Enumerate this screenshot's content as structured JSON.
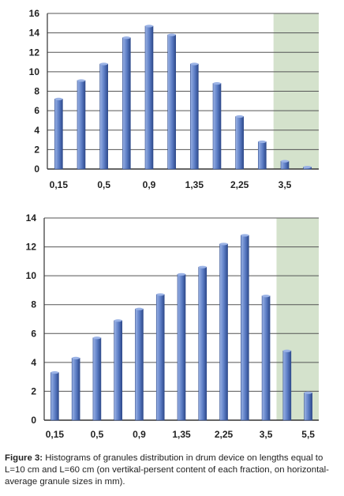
{
  "colors": {
    "bar": "#5b7cc4",
    "bar_dark": "#2e4a8c",
    "bar_light": "#9bb3e6",
    "plot_bg": "#d4e2cc",
    "grid": "#555555"
  },
  "chart_data": [
    {
      "type": "bar",
      "ylim": [
        0,
        16
      ],
      "yticks": [
        "0",
        "2",
        "4",
        "6",
        "8",
        "10",
        "12",
        "14",
        "16"
      ],
      "xtick_labels": [
        "0,15",
        "0,5",
        "0,9",
        "1,35",
        "2,25",
        "3,5"
      ],
      "xtick_bar_index": [
        0,
        2,
        4,
        6,
        8,
        10
      ],
      "values": [
        7.2,
        9.1,
        10.8,
        13.5,
        14.7,
        13.8,
        10.8,
        8.8,
        5.4,
        2.8,
        0.8,
        0.2
      ],
      "grid": true,
      "legend": "none"
    },
    {
      "type": "bar",
      "ylim": [
        0,
        14
      ],
      "yticks": [
        "0",
        "2",
        "4",
        "6",
        "8",
        "10",
        "12",
        "14"
      ],
      "xtick_labels": [
        "0,15",
        "0,5",
        "0,9",
        "1,35",
        "2,25",
        "3,5",
        "5,5"
      ],
      "xtick_bar_index": [
        0,
        2,
        4,
        6,
        8,
        10,
        12
      ],
      "values": [
        3.3,
        4.3,
        5.7,
        6.9,
        7.7,
        8.7,
        10.1,
        10.6,
        12.2,
        12.8,
        8.6,
        4.8,
        1.9
      ],
      "grid": true,
      "legend": "none"
    }
  ],
  "caption": {
    "label": "Figure 3:",
    "text": " Histograms of granules distribution in drum device on lengths equal to L=10 cm and L=60 cm (on vertikal-persent content of each fraction, on horizontal-average granule sizes in mm)."
  }
}
